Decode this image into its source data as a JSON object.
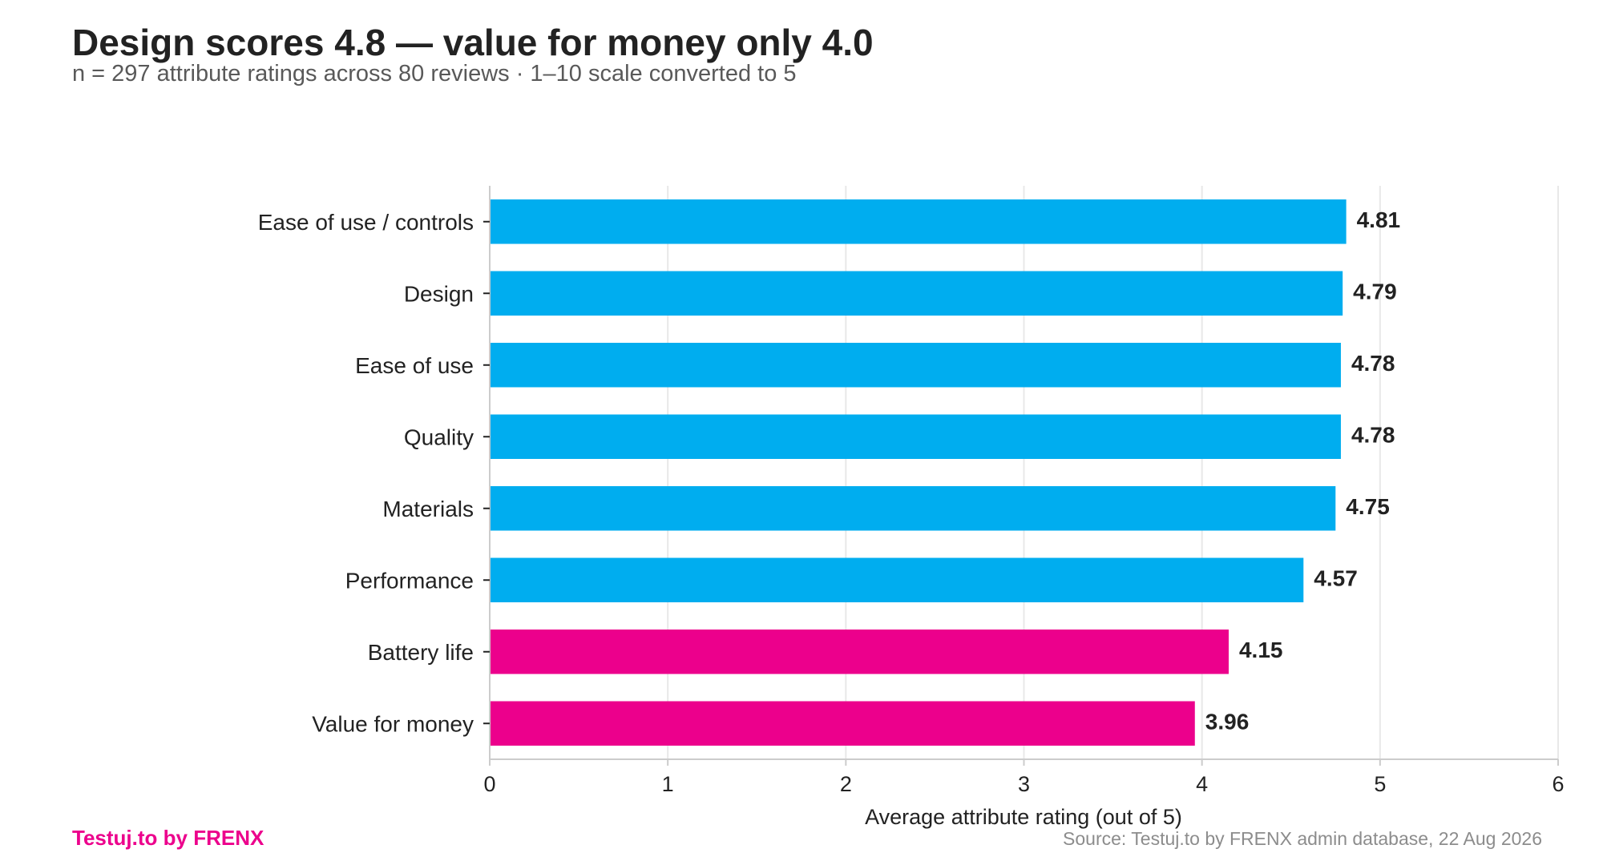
{
  "header": {
    "title": "Design scores 4.8 — value for money only 4.0",
    "subtitle": "n = 297 attribute ratings across 80 reviews · 1–10 scale converted to 5"
  },
  "footer": {
    "brand": "Testuj.to by FRENX",
    "source": "Source: Testuj.to by FRENX admin database, 22 Aug 2026"
  },
  "colors": {
    "highlight_bar": "#00adef",
    "low_bar": "#ec008c",
    "grid": "#e8e8e8",
    "axis": "#cccccc",
    "text": "#222222"
  },
  "chart_data": {
    "type": "bar",
    "orientation": "horizontal",
    "categories": [
      "Ease of use / controls",
      "Design",
      "Ease of use",
      "Quality",
      "Materials",
      "Performance",
      "Battery life",
      "Value for money"
    ],
    "values": [
      4.81,
      4.79,
      4.78,
      4.78,
      4.75,
      4.57,
      4.15,
      3.96
    ],
    "value_labels": [
      "4.81",
      "4.79",
      "4.78",
      "4.78",
      "4.75",
      "4.57",
      "4.15",
      "3.96"
    ],
    "bar_colors": [
      "#00adef",
      "#00adef",
      "#00adef",
      "#00adef",
      "#00adef",
      "#00adef",
      "#ec008c",
      "#ec008c"
    ],
    "xlabel": "Average attribute rating (out of 5)",
    "ylabel": "",
    "xlim": [
      0,
      6
    ],
    "xticks": [
      0,
      1,
      2,
      3,
      4,
      5,
      6
    ],
    "grid": true,
    "legend": "none"
  }
}
